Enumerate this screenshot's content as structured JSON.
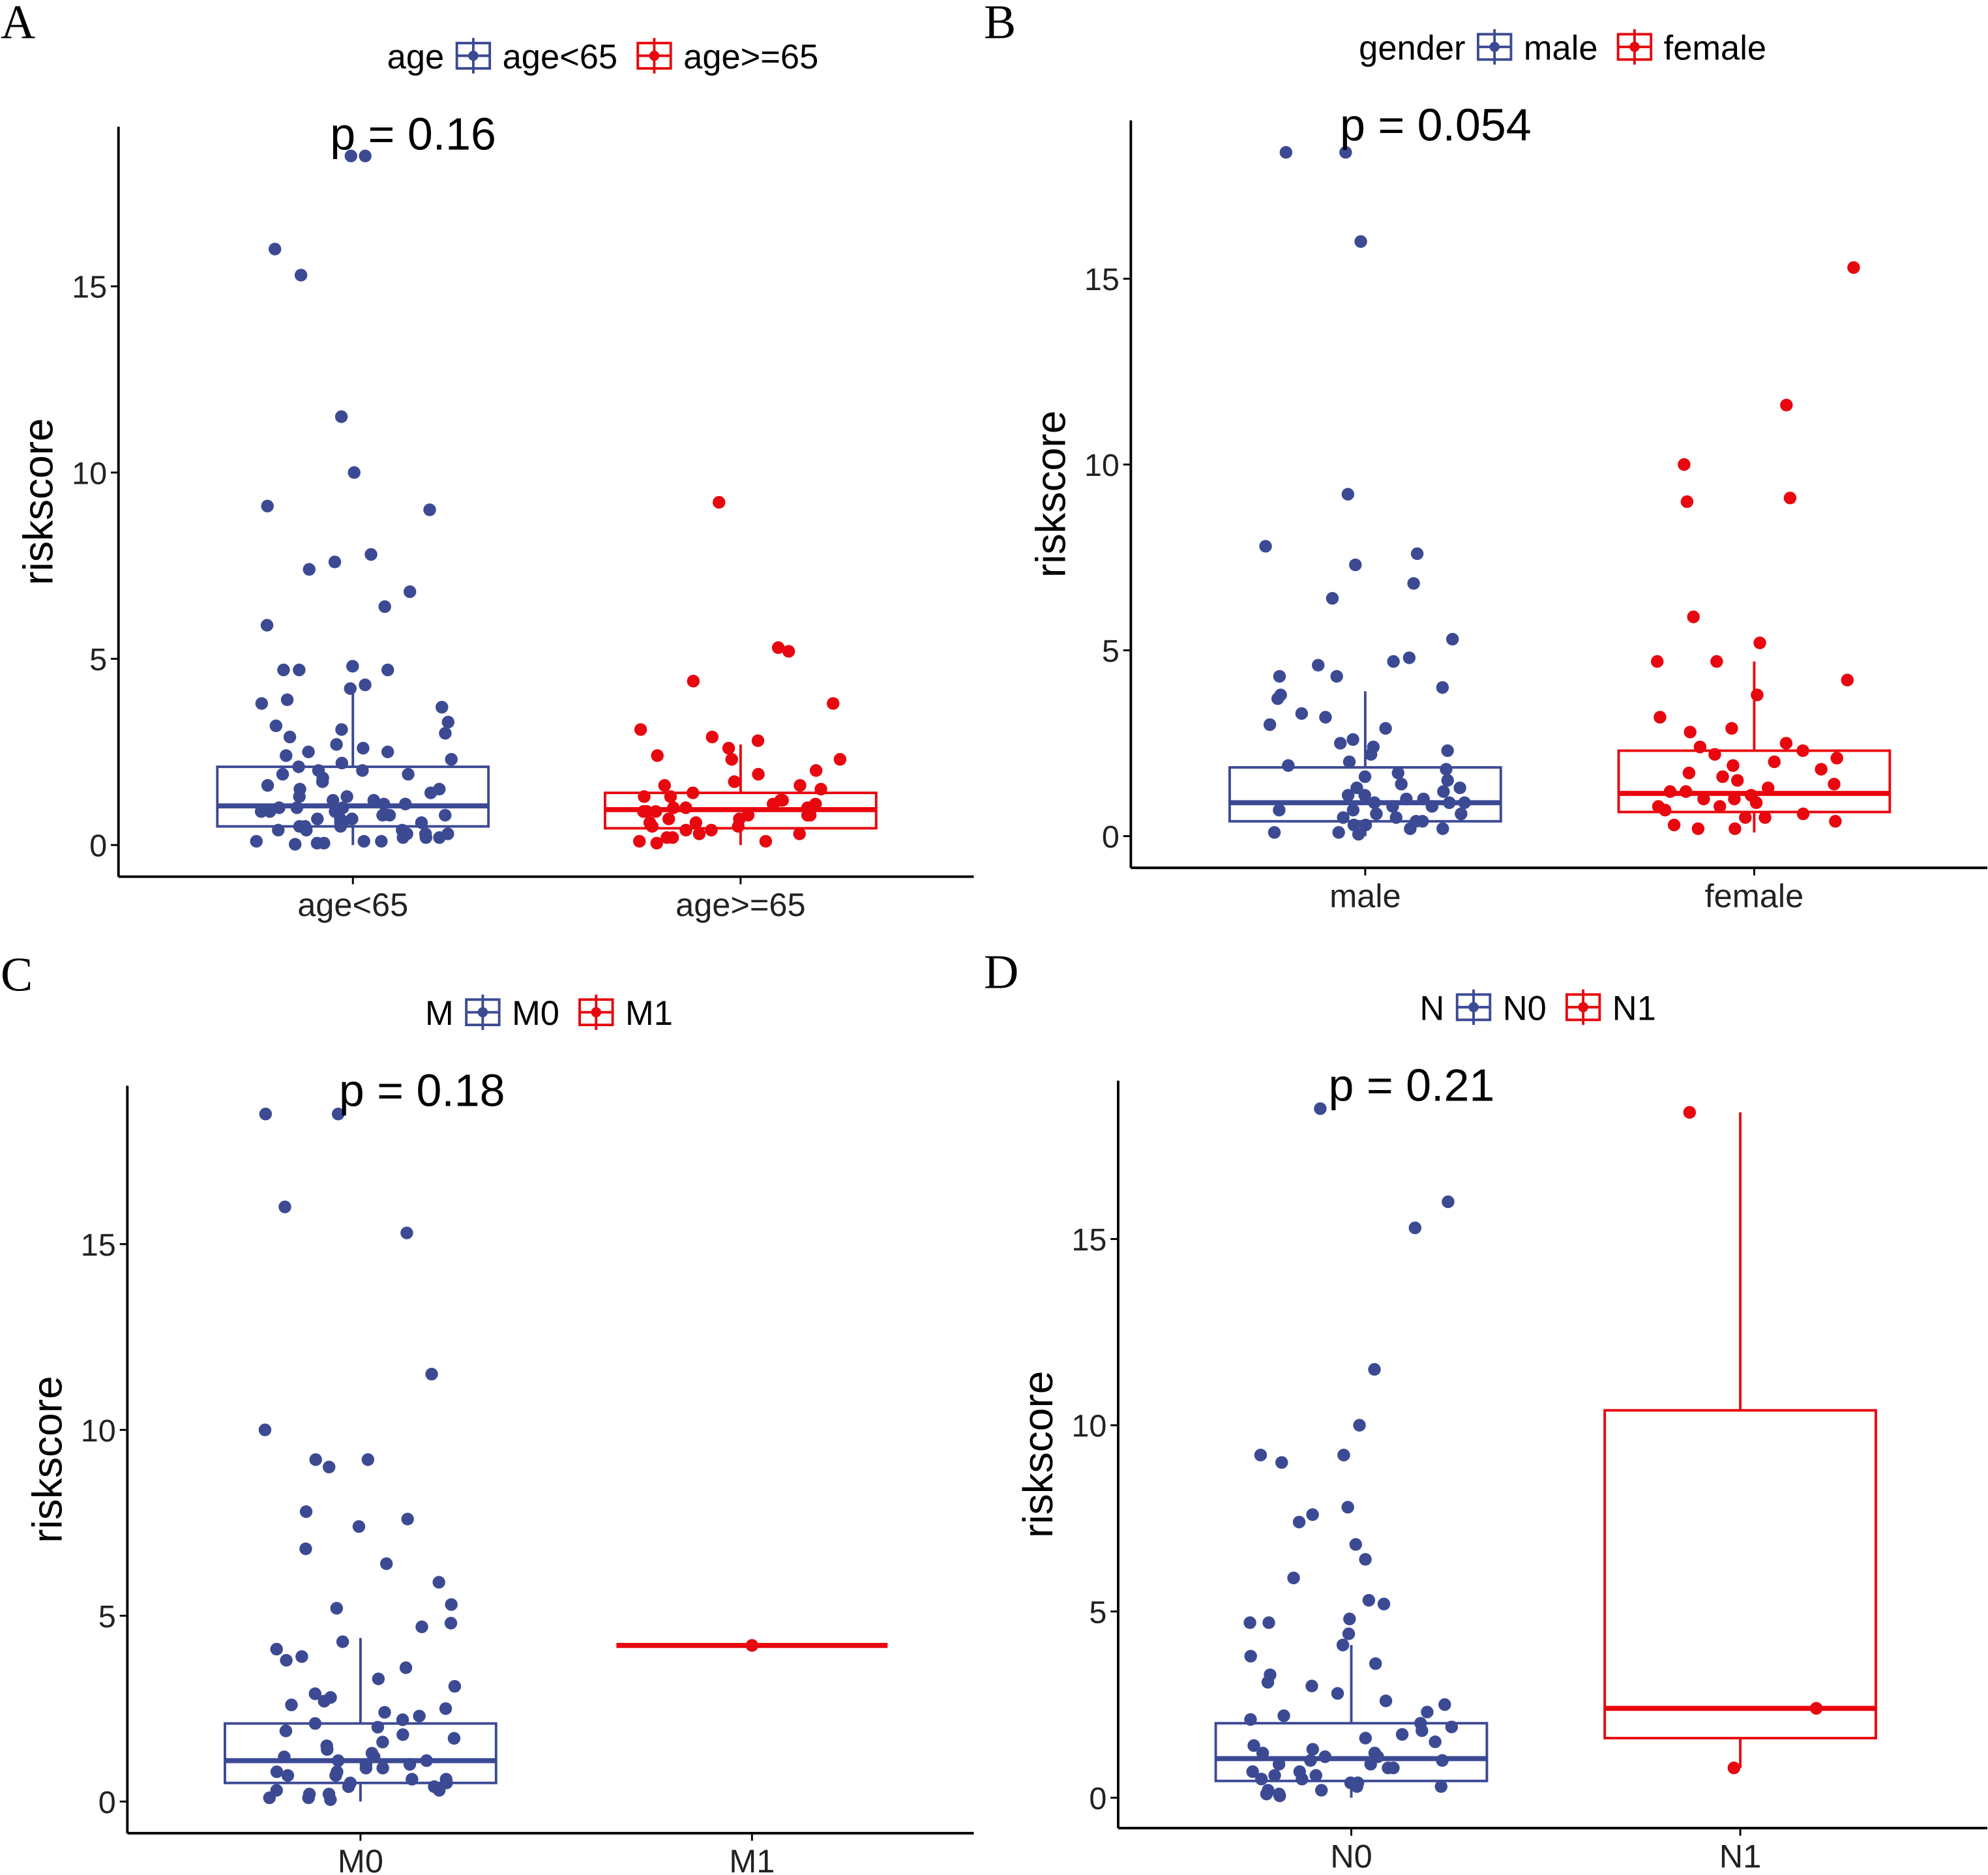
{
  "colors": {
    "blue": "#3c4a94",
    "red": "#e8070e",
    "axis": "#000000"
  },
  "chart_data": [
    {
      "type": "box",
      "panel_label": "A",
      "ylabel": "riskscore",
      "p_label": "p = 0.16",
      "legend": {
        "title": "age",
        "entries": [
          "age<65",
          "age>=65"
        ],
        "placement": "top"
      },
      "categories": [
        "age<65",
        "age>=65"
      ],
      "yticks": [
        0,
        5,
        10,
        15
      ],
      "ylim": [
        -0.8,
        19
      ],
      "series": [
        {
          "name": "age<65",
          "color": "blue",
          "box": {
            "min": 0,
            "q1": 0.5,
            "median": 1.05,
            "q3": 2.1,
            "max": 4.3
          },
          "points": [
            18.5,
            18.5,
            16,
            15.3,
            11.5,
            10,
            9.1,
            9,
            7.8,
            7.6,
            7.4,
            6.8,
            6.4,
            5.9,
            4.8,
            4.7,
            4.7,
            4.7,
            4.3,
            4.2,
            3.9,
            3.8,
            3.7,
            3.3,
            3.2,
            3.1,
            3,
            2.9,
            2.7,
            2.6,
            2.5,
            2.5,
            2.4,
            2.3,
            2.2,
            2.1,
            2,
            2,
            1.9,
            1.9,
            1.8,
            1.7,
            1.6,
            1.5,
            1.5,
            1.4,
            1.3,
            1.3,
            1.2,
            1.2,
            1.1,
            1.1,
            1,
            1,
            1,
            0.9,
            0.9,
            0.9,
            0.8,
            0.8,
            0.8,
            0.7,
            0.7,
            0.7,
            0.6,
            0.6,
            0.6,
            0.5,
            0.5,
            0.5,
            0.4,
            0.4,
            0.4,
            0.3,
            0.3,
            0.3,
            0.2,
            0.2,
            0.2,
            0.1,
            0.1,
            0.1,
            0.05,
            0.05,
            0.02
          ]
        },
        {
          "name": "age>=65",
          "color": "red",
          "box": {
            "min": 0,
            "q1": 0.45,
            "median": 0.95,
            "q3": 1.4,
            "max": 2.7
          },
          "points": [
            9.2,
            5.3,
            5.2,
            4.4,
            3.8,
            3.1,
            2.9,
            2.8,
            2.6,
            2.4,
            2.3,
            2.3,
            2,
            1.9,
            1.7,
            1.6,
            1.6,
            1.5,
            1.4,
            1.3,
            1.3,
            1.2,
            1.2,
            1.1,
            1.1,
            1,
            1,
            1,
            0.9,
            0.9,
            0.9,
            0.8,
            0.8,
            0.8,
            0.7,
            0.7,
            0.6,
            0.6,
            0.5,
            0.5,
            0.4,
            0.4,
            0.3,
            0.3,
            0.2,
            0.2,
            0.1,
            0.1,
            0.05
          ]
        }
      ]
    },
    {
      "type": "box",
      "panel_label": "B",
      "ylabel": "riskscore",
      "p_label": "p = 0.054",
      "legend": {
        "title": "gender",
        "entries": [
          "male",
          "female"
        ],
        "placement": "top"
      },
      "categories": [
        "male",
        "female"
      ],
      "yticks": [
        0,
        5,
        10,
        15
      ],
      "ylim": [
        -0.8,
        19
      ],
      "series": [
        {
          "name": "male",
          "color": "blue",
          "box": {
            "min": 0,
            "q1": 0.4,
            "median": 0.9,
            "q3": 1.85,
            "max": 3.9
          },
          "points": [
            18.4,
            18.4,
            16,
            9.2,
            7.8,
            7.6,
            7.3,
            6.8,
            6.4,
            5.3,
            4.8,
            4.7,
            4.6,
            4.3,
            4.3,
            4,
            3.8,
            3.7,
            3.3,
            3.2,
            3,
            2.9,
            2.6,
            2.5,
            2.4,
            2.3,
            2.2,
            2,
            1.9,
            1.8,
            1.7,
            1.6,
            1.5,
            1.4,
            1.3,
            1.3,
            1.2,
            1.1,
            1.1,
            1,
            1,
            0.9,
            0.9,
            0.9,
            0.8,
            0.8,
            0.7,
            0.7,
            0.6,
            0.6,
            0.5,
            0.5,
            0.4,
            0.4,
            0.3,
            0.3,
            0.2,
            0.2,
            0.1,
            0.1,
            0.05
          ]
        },
        {
          "name": "female",
          "color": "red",
          "box": {
            "min": 0.1,
            "q1": 0.65,
            "median": 1.15,
            "q3": 2.3,
            "max": 4.7
          },
          "points": [
            15.3,
            11.6,
            10,
            9.1,
            9,
            5.9,
            5.2,
            4.7,
            4.7,
            4.2,
            3.8,
            3.2,
            2.9,
            2.8,
            2.5,
            2.4,
            2.3,
            2.2,
            2.1,
            2,
            1.9,
            1.8,
            1.7,
            1.6,
            1.5,
            1.4,
            1.3,
            1.2,
            1.2,
            1.1,
            1,
            1,
            0.9,
            0.8,
            0.8,
            0.7,
            0.6,
            0.5,
            0.5,
            0.4,
            0.3,
            0.2,
            0.2
          ]
        }
      ]
    },
    {
      "type": "box",
      "panel_label": "C",
      "ylabel": "riskscore",
      "p_label": "p = 0.18",
      "legend": {
        "title": "M",
        "entries": [
          "M0",
          "M1"
        ],
        "placement": "top"
      },
      "categories": [
        "M0",
        "M1"
      ],
      "yticks": [
        0,
        5,
        10,
        15
      ],
      "ylim": [
        -0.8,
        19
      ],
      "series": [
        {
          "name": "M0",
          "color": "blue",
          "box": {
            "min": 0,
            "q1": 0.5,
            "median": 1.1,
            "q3": 2.1,
            "max": 4.4
          },
          "points": [
            18.5,
            18.5,
            16,
            15.3,
            11.5,
            10,
            9.2,
            9.2,
            9,
            7.8,
            7.6,
            7.4,
            6.8,
            6.4,
            5.9,
            5.3,
            5.2,
            4.8,
            4.7,
            4.3,
            4.1,
            3.9,
            3.8,
            3.6,
            3.3,
            3.1,
            2.9,
            2.8,
            2.7,
            2.6,
            2.5,
            2.4,
            2.3,
            2.2,
            2.1,
            2,
            1.9,
            1.8,
            1.7,
            1.6,
            1.5,
            1.4,
            1.3,
            1.2,
            1.2,
            1.1,
            1.1,
            1,
            1,
            0.9,
            0.9,
            0.8,
            0.8,
            0.7,
            0.7,
            0.6,
            0.6,
            0.5,
            0.5,
            0.4,
            0.4,
            0.3,
            0.3,
            0.2,
            0.2,
            0.1,
            0.1,
            0.05
          ]
        },
        {
          "name": "M1",
          "color": "red",
          "box": {
            "min": 4.2,
            "q1": 4.2,
            "median": 4.2,
            "q3": 4.2,
            "max": 4.2
          },
          "points": [
            4.2
          ]
        }
      ]
    },
    {
      "type": "box",
      "panel_label": "D",
      "ylabel": "riskscore",
      "p_label": "p = 0.21",
      "legend": {
        "title": "N",
        "entries": [
          "N0",
          "N1"
        ],
        "placement": "top"
      },
      "categories": [
        "N0",
        "N1"
      ],
      "yticks": [
        0,
        5,
        10,
        15
      ],
      "ylim": [
        -0.8,
        19
      ],
      "series": [
        {
          "name": "N0",
          "color": "blue",
          "box": {
            "min": 0,
            "q1": 0.45,
            "median": 1.05,
            "q3": 2.0,
            "max": 4.1
          },
          "points": [
            18.5,
            16,
            15.3,
            11.5,
            10,
            9.2,
            9.2,
            9,
            7.8,
            7.6,
            7.4,
            6.8,
            6.4,
            5.9,
            5.3,
            5.2,
            4.8,
            4.7,
            4.7,
            4.4,
            4.1,
            3.8,
            3.6,
            3.3,
            3.1,
            3,
            2.8,
            2.6,
            2.5,
            2.3,
            2.2,
            2.1,
            2,
            1.9,
            1.8,
            1.7,
            1.6,
            1.5,
            1.4,
            1.3,
            1.2,
            1.2,
            1.1,
            1.1,
            1,
            1,
            0.9,
            0.9,
            0.8,
            0.8,
            0.7,
            0.7,
            0.6,
            0.6,
            0.5,
            0.5,
            0.4,
            0.4,
            0.3,
            0.3,
            0.2,
            0.2,
            0.1,
            0.1,
            0.05
          ]
        },
        {
          "name": "N1",
          "color": "red",
          "box": {
            "min": 0.8,
            "q1": 1.6,
            "median": 2.4,
            "q3": 10.4,
            "max": 18.4
          },
          "points": [
            18.4,
            2.4,
            0.8
          ]
        }
      ]
    }
  ]
}
